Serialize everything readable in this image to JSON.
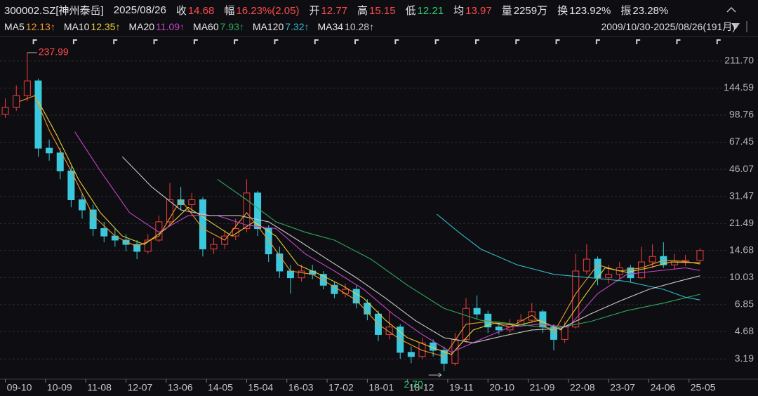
{
  "header": {
    "code": "300002.SZ[神州泰岳]",
    "date": "2025/08/26",
    "fields": [
      {
        "label": "收",
        "value": "14.68",
        "color": "#ff4b4b"
      },
      {
        "label": "幅",
        "value": "16.23%(2.05)",
        "color": "#ff4b4b"
      },
      {
        "label": "开",
        "value": "12.77",
        "color": "#ff4b4b"
      },
      {
        "label": "高",
        "value": "15.15",
        "color": "#ff4b4b"
      },
      {
        "label": "低",
        "value": "12.21",
        "color": "#2ecc71"
      },
      {
        "label": "均",
        "value": "13.97",
        "color": "#ff4b4b"
      },
      {
        "label": "量",
        "value": "2259万",
        "color": "#e6e6e6"
      },
      {
        "label": "换",
        "value": "123.92%",
        "color": "#e6e6e6"
      },
      {
        "label": "振",
        "value": "23.28%",
        "color": "#e6e6e6"
      }
    ],
    "range": "2009/10/30-2025/08/26(191月)"
  },
  "chart_data": {
    "type": "candlestick",
    "log_y": true,
    "grid": true,
    "up_color": "#f23c3c",
    "down_color": "#3cc8dc",
    "x": [
      0,
      3,
      6,
      9,
      12,
      15,
      18,
      21,
      24,
      27,
      30,
      33,
      36,
      39,
      42,
      45,
      48,
      51,
      54,
      57,
      60,
      63,
      66,
      69,
      72,
      75,
      78,
      81,
      84,
      87,
      90,
      93,
      96,
      99,
      102,
      105,
      108,
      111,
      114,
      117,
      120,
      123,
      126,
      129,
      132,
      135,
      138,
      141,
      144,
      147,
      150,
      153,
      156,
      159,
      162,
      165,
      168,
      171,
      174,
      177,
      180,
      183,
      186,
      190
    ],
    "open": [
      100,
      110,
      130,
      160,
      62,
      58,
      45,
      30,
      26,
      20,
      18,
      17,
      16,
      14.5,
      17,
      22,
      30,
      28,
      30,
      15,
      16,
      18,
      20,
      33,
      20,
      14,
      11,
      10,
      11,
      10.5,
      9,
      8,
      8.5,
      7,
      6,
      4.5,
      5,
      3.5,
      3.3,
      4.0,
      3.6,
      3.0,
      4.2,
      6.5,
      6.0,
      5.0,
      4.8,
      5.2,
      5.5,
      6.2,
      5.0,
      4.2,
      5.0,
      11,
      13,
      10,
      10.5,
      11.5,
      10,
      12.5,
      13.5,
      12.0,
      12.5,
      12.77
    ],
    "high": [
      125,
      150,
      237.99,
      165,
      70,
      62,
      48,
      33,
      28,
      22,
      20,
      18.5,
      17,
      18.5,
      24,
      38,
      36,
      33,
      31,
      17.5,
      19.5,
      23,
      40,
      34,
      21,
      15.5,
      12,
      12,
      12,
      11,
      9.5,
      9.2,
      9,
      7.4,
      6.3,
      6.2,
      5.2,
      3.8,
      4.3,
      4.2,
      3.8,
      4.6,
      7.5,
      7.8,
      6.3,
      5.4,
      5.6,
      6.0,
      7.0,
      6.4,
      5.2,
      5.4,
      14,
      16,
      13.5,
      12,
      12.5,
      12,
      15.5,
      16,
      16.5,
      14,
      13.8,
      15.15
    ],
    "low": [
      95,
      105,
      120,
      55,
      52,
      40,
      27,
      23,
      18,
      16.5,
      15.5,
      14.5,
      13,
      14,
      16.5,
      21,
      26,
      25,
      13.5,
      14,
      15,
      17,
      19,
      18,
      12.5,
      10,
      8,
      9.5,
      9.8,
      8.5,
      7.5,
      7.6,
      6.5,
      5.5,
      4.1,
      4.2,
      3.2,
      3.0,
      3.2,
      3.3,
      2.7,
      2.9,
      4.0,
      5.6,
      4.6,
      4.5,
      4.6,
      5.0,
      5.3,
      4.6,
      3.6,
      4.0,
      4.9,
      10.5,
      9,
      9.2,
      9.8,
      9.4,
      9.8,
      11.5,
      11.5,
      11.2,
      11.8,
      12.21
    ],
    "close": [
      110,
      130,
      160,
      62,
      58,
      45,
      30,
      26,
      20,
      18,
      17,
      16,
      14.5,
      17,
      22,
      30,
      28,
      30,
      15,
      16,
      18,
      20,
      33,
      20,
      14,
      11,
      10,
      11,
      10.5,
      9,
      8,
      8.5,
      7,
      6,
      4.5,
      5,
      3.5,
      3.3,
      4.0,
      3.6,
      3.0,
      4.2,
      6.5,
      6.0,
      5.0,
      4.8,
      5.2,
      5.5,
      6.2,
      5.0,
      4.2,
      5.0,
      11,
      13,
      10,
      10.5,
      11.5,
      10,
      12.5,
      13.5,
      12.0,
      12.5,
      12.8,
      14.68
    ],
    "high_label": "237.99",
    "low_label": "2.70",
    "xlim": [
      -0.5,
      190.5
    ],
    "xticks": [
      {
        "value": 0,
        "label": "09-10"
      },
      {
        "value": 11,
        "label": "10-09"
      },
      {
        "value": 22,
        "label": "11-08"
      },
      {
        "value": 33,
        "label": "12-07"
      },
      {
        "value": 44,
        "label": "13-06"
      },
      {
        "value": 55,
        "label": "14-05"
      },
      {
        "value": 66,
        "label": "15-04"
      },
      {
        "value": 77,
        "label": "16-03"
      },
      {
        "value": 88,
        "label": "17-02"
      },
      {
        "value": 99,
        "label": "18-01"
      },
      {
        "value": 110,
        "label": "18-12"
      },
      {
        "value": 121,
        "label": "19-11"
      },
      {
        "value": 132,
        "label": "20-10"
      },
      {
        "value": 143,
        "label": "21-09"
      },
      {
        "value": 154,
        "label": "22-08"
      },
      {
        "value": 165,
        "label": "23-07"
      },
      {
        "value": 176,
        "label": "24-06"
      },
      {
        "value": 187,
        "label": "25-05"
      }
    ],
    "ylim": [
      2.4,
      290
    ],
    "yticks": [
      3.19,
      4.68,
      6.85,
      10.03,
      14.68,
      21.49,
      31.47,
      46.07,
      67.45,
      98.76,
      144.59,
      {
        "value": 211.7,
        "label": "211.70"
      }
    ],
    "series": [
      {
        "name": "MA5",
        "label": "12.13↑",
        "color": "#f0962c",
        "x": [
          4,
          8,
          12,
          18,
          24,
          30,
          36,
          42,
          48,
          54,
          60,
          66,
          72,
          78,
          84,
          90,
          96,
          102,
          108,
          114,
          120,
          126,
          132,
          138,
          144,
          150,
          156,
          162,
          168,
          174,
          180,
          186,
          190
        ],
        "values": [
          120,
          130,
          80,
          45,
          24,
          18,
          15.5,
          18,
          30,
          20,
          17,
          25,
          17,
          11,
          10.5,
          8.8,
          7.3,
          5.2,
          4.2,
          3.6,
          3.3,
          5.2,
          5.4,
          5.0,
          5.9,
          4.6,
          8,
          12,
          11,
          11.5,
          12.8,
          12.6,
          12.13
        ]
      },
      {
        "name": "MA10",
        "label": "12.35↑",
        "color": "#e8cc3a",
        "x": [
          9,
          14,
          20,
          26,
          32,
          38,
          44,
          50,
          56,
          62,
          68,
          74,
          80,
          86,
          92,
          98,
          104,
          110,
          116,
          122,
          128,
          134,
          140,
          146,
          152,
          158,
          164,
          170,
          176,
          182,
          190
        ],
        "values": [
          120,
          75,
          40,
          25,
          18,
          16,
          20,
          27,
          22,
          18,
          22,
          18,
          12,
          10.5,
          9,
          7.5,
          5.5,
          4.3,
          3.8,
          3.4,
          4.8,
          5.3,
          5.1,
          5.5,
          4.8,
          7.5,
          11.5,
          10.8,
          11.5,
          12.5,
          12.35
        ]
      },
      {
        "name": "MA20",
        "label": "11.09↑",
        "color": "#c545c8",
        "x": [
          19,
          26,
          34,
          42,
          50,
          58,
          66,
          74,
          82,
          90,
          98,
          106,
          114,
          122,
          130,
          138,
          146,
          154,
          162,
          170,
          178,
          186,
          190
        ],
        "values": [
          78,
          45,
          25,
          19,
          24,
          24,
          21,
          20,
          14,
          11,
          8.5,
          6,
          4.5,
          3.5,
          4.2,
          5.0,
          5.2,
          5.0,
          8,
          10.5,
          11,
          11.5,
          11.09
        ]
      },
      {
        "name": "MA60",
        "label": "7.93↑",
        "color": "#2fa85a",
        "x": [
          58,
          66,
          74,
          82,
          90,
          100,
          110,
          120,
          130,
          140,
          150,
          160,
          170,
          180,
          190
        ],
        "values": [
          40,
          30,
          22,
          19,
          17,
          13,
          9,
          6.5,
          5.5,
          5.2,
          4.9,
          5.4,
          6.3,
          7.0,
          7.93
        ]
      },
      {
        "name": "MA120",
        "label": "7.32↑",
        "color": "#33b8c8",
        "x": [
          118,
          124,
          130,
          140,
          150,
          160,
          170,
          180,
          186,
          190
        ],
        "values": [
          24.5,
          19,
          15,
          12,
          10.5,
          10,
          9.5,
          8.5,
          7.6,
          7.32
        ]
      },
      {
        "name": "MA34",
        "label": "10.28↑",
        "color": "#c8c8c8",
        "x": [
          32,
          40,
          48,
          56,
          64,
          72,
          80,
          88,
          96,
          104,
          112,
          120,
          128,
          136,
          144,
          152,
          160,
          168,
          176,
          184,
          190
        ],
        "values": [
          55,
          36,
          26,
          24,
          24,
          22,
          17,
          13,
          10,
          7.5,
          5.5,
          4.3,
          4.0,
          4.4,
          4.8,
          4.9,
          6,
          7.2,
          8.5,
          9.5,
          10.28
        ]
      }
    ]
  }
}
